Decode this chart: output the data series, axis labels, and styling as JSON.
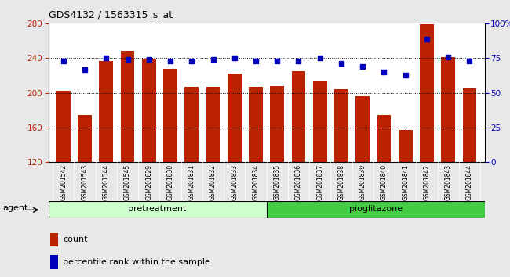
{
  "title": "GDS4132 / 1563315_s_at",
  "samples": [
    "GSM201542",
    "GSM201543",
    "GSM201544",
    "GSM201545",
    "GSM201829",
    "GSM201830",
    "GSM201831",
    "GSM201832",
    "GSM201833",
    "GSM201834",
    "GSM201835",
    "GSM201836",
    "GSM201837",
    "GSM201838",
    "GSM201839",
    "GSM201840",
    "GSM201841",
    "GSM201842",
    "GSM201843",
    "GSM201844"
  ],
  "counts": [
    202,
    174,
    237,
    248,
    239,
    228,
    207,
    207,
    222,
    207,
    208,
    225,
    213,
    204,
    196,
    174,
    157,
    279,
    241,
    205
  ],
  "percentiles": [
    73,
    67,
    75,
    74,
    74,
    73,
    73,
    74,
    75,
    73,
    73,
    73,
    75,
    71,
    69,
    65,
    63,
    89,
    76,
    73
  ],
  "group1_label": "pretreatment",
  "group2_label": "pioglitazone",
  "group1_count": 10,
  "group2_count": 10,
  "ylim_left": [
    120,
    280
  ],
  "ylim_right": [
    0,
    100
  ],
  "yticks_left": [
    120,
    160,
    200,
    240,
    280
  ],
  "yticks_right": [
    0,
    25,
    50,
    75,
    100
  ],
  "ytick_labels_right": [
    "0",
    "25",
    "50",
    "75",
    "100%"
  ],
  "bar_color": "#bb2200",
  "dot_color": "#0000bb",
  "group1_color": "#ccffcc",
  "group2_color": "#44cc44",
  "agent_label": "agent",
  "legend_count": "count",
  "legend_pct": "percentile rank within the sample",
  "background_color": "#e8e8e8",
  "plot_bg": "#ffffff",
  "tick_label_bg": "#d0d0d0"
}
